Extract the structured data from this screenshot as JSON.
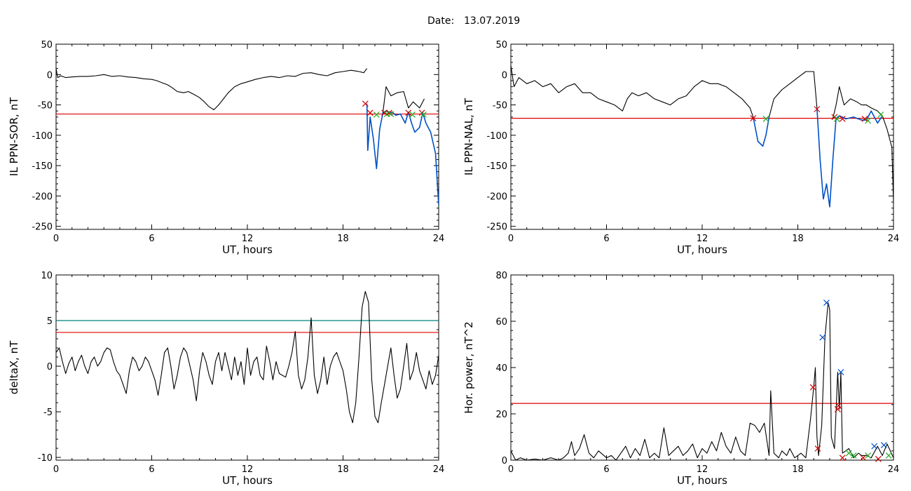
{
  "header": {
    "date_label": "Date:",
    "date_value": "13.07.2019"
  },
  "colors": {
    "signal": "#000000",
    "threshold": "#e00000",
    "threshold2": "#008080",
    "segment": "#0050c8",
    "marker_start": "#d00000",
    "marker_mid": "#22b022",
    "marker_peak": "#0050c8"
  },
  "chart_data": [
    {
      "id": "il-sor",
      "type": "line",
      "xlabel": "UT, hours",
      "ylabel": "IL PPN-SOR, nT",
      "xlim": [
        0,
        24
      ],
      "ylim": [
        -255,
        50
      ],
      "xticks": [
        0,
        6,
        12,
        18,
        24
      ],
      "yticks": [
        50,
        0,
        -50,
        -100,
        -150,
        -200,
        -250
      ],
      "series": [
        {
          "color": "black",
          "x": [
            0,
            0.1,
            0.3,
            0.6,
            1,
            1.5,
            2,
            2.5,
            3,
            3.5,
            4,
            4.5,
            5,
            5.5,
            6,
            6.3,
            6.6,
            7,
            7.3,
            7.6,
            8,
            8.3,
            8.6,
            9,
            9.3,
            9.6,
            9.9,
            10.2,
            10.5,
            10.8,
            11.2,
            11.6,
            12,
            12.5,
            13,
            13.5,
            14,
            14.5,
            15,
            15.5,
            16,
            16.5,
            17,
            17.5,
            18,
            18.5,
            19,
            19.3,
            19.5
          ],
          "y": [
            10,
            -5,
            -2,
            -5,
            -4,
            -3,
            -3,
            -2,
            0,
            -3,
            -2,
            -4,
            -5,
            -7,
            -8,
            -10,
            -13,
            -17,
            -22,
            -28,
            -30,
            -28,
            -32,
            -38,
            -45,
            -53,
            -58,
            -50,
            -40,
            -30,
            -20,
            -15,
            -12,
            -8,
            -5,
            -3,
            -5,
            -2,
            -3,
            2,
            3,
            0,
            -2,
            3,
            5,
            7,
            5,
            3,
            10
          ]
        },
        {
          "color": "blue",
          "x": [
            19.5,
            19.55,
            19.7,
            19.9,
            20.1,
            20.3,
            20.5,
            20.7,
            20.9,
            21.1,
            21.3,
            21.6,
            21.9,
            22.1,
            22.3,
            22.5,
            22.8,
            23.0,
            23.2,
            23.5,
            23.8,
            24
          ],
          "y": [
            -48,
            -125,
            -70,
            -105,
            -155,
            -90,
            -63,
            -60,
            -63,
            -62,
            -67,
            -65,
            -80,
            -62,
            -80,
            -95,
            -87,
            -63,
            -80,
            -95,
            -130,
            -215
          ]
        },
        {
          "color": "black",
          "x": [
            20.5,
            20.7,
            21.0,
            21.4,
            21.8,
            22.1,
            22.4,
            22.8,
            23.1
          ],
          "y": [
            -63,
            -20,
            -35,
            -30,
            -28,
            -55,
            -45,
            -55,
            -40
          ]
        }
      ],
      "thresholds": [
        {
          "y": -65,
          "color": "red"
        }
      ],
      "markers": [
        {
          "x": 19.4,
          "y": -48,
          "color": "red"
        },
        {
          "x": 19.7,
          "y": -63,
          "color": "red"
        },
        {
          "x": 20.1,
          "y": -66,
          "color": "green"
        },
        {
          "x": 20.6,
          "y": -63,
          "color": "red"
        },
        {
          "x": 20.75,
          "y": -65,
          "color": "green"
        },
        {
          "x": 20.9,
          "y": -63,
          "color": "red"
        },
        {
          "x": 21.0,
          "y": -65,
          "color": "green"
        },
        {
          "x": 22.1,
          "y": -63,
          "color": "red"
        },
        {
          "x": 22.35,
          "y": -66,
          "color": "green"
        },
        {
          "x": 22.95,
          "y": -63,
          "color": "red"
        },
        {
          "x": 23.05,
          "y": -66,
          "color": "green"
        }
      ]
    },
    {
      "id": "il-nal",
      "type": "line",
      "xlabel": "UT, hours",
      "ylabel": "IL PPN-NAL, nT",
      "xlim": [
        0,
        24
      ],
      "ylim": [
        -255,
        50
      ],
      "xticks": [
        0,
        6,
        12,
        18,
        24
      ],
      "yticks": [
        50,
        0,
        -50,
        -100,
        -150,
        -200,
        -250
      ],
      "series": [
        {
          "color": "black",
          "x": [
            0,
            0.2,
            0.5,
            1,
            1.5,
            2,
            2.5,
            3,
            3.5,
            4,
            4.5,
            5,
            5.5,
            6,
            6.5,
            7,
            7.3,
            7.6,
            8,
            8.5,
            9,
            9.5,
            10,
            10.5,
            11,
            11.5,
            12,
            12.5,
            13,
            13.5,
            14,
            14.5,
            15,
            15.2
          ],
          "y": [
            15,
            -20,
            -5,
            -15,
            -10,
            -20,
            -15,
            -30,
            -20,
            -15,
            -30,
            -30,
            -40,
            -45,
            -50,
            -60,
            -40,
            -30,
            -35,
            -30,
            -40,
            -45,
            -50,
            -40,
            -35,
            -20,
            -10,
            -15,
            -15,
            -20,
            -30,
            -40,
            -55,
            -70
          ]
        },
        {
          "color": "blue",
          "x": [
            15.2,
            15.5,
            15.8,
            16.0,
            16.2
          ],
          "y": [
            -70,
            -110,
            -118,
            -100,
            -70
          ]
        },
        {
          "color": "black",
          "x": [
            16.2,
            16.5,
            17,
            17.5,
            18,
            18.5,
            19,
            19.2
          ],
          "y": [
            -70,
            -40,
            -25,
            -15,
            -5,
            5,
            5,
            -55
          ]
        },
        {
          "color": "blue",
          "x": [
            19.2,
            19.4,
            19.6,
            19.8,
            20.0,
            20.2,
            20.4,
            20.6,
            20.8,
            21.0,
            21.5,
            22.0,
            22.3,
            22.6,
            23.0,
            23.3
          ],
          "y": [
            -55,
            -140,
            -205,
            -180,
            -218,
            -140,
            -72,
            -68,
            -70,
            -73,
            -70,
            -75,
            -75,
            -60,
            -80,
            -68
          ]
        },
        {
          "color": "black",
          "x": [
            20.2,
            20.4,
            20.6,
            20.9,
            21.3,
            21.7,
            22.0,
            22.3,
            22.6,
            23.0,
            23.3,
            23.6,
            23.9,
            24
          ],
          "y": [
            -72,
            -50,
            -20,
            -50,
            -40,
            -45,
            -50,
            -50,
            -55,
            -60,
            -68,
            -90,
            -120,
            -210
          ]
        }
      ],
      "thresholds": [
        {
          "y": -72,
          "color": "red"
        }
      ],
      "markers": [
        {
          "x": 15.2,
          "y": -72,
          "color": "red"
        },
        {
          "x": 16.0,
          "y": -73,
          "color": "green"
        },
        {
          "x": 19.2,
          "y": -57,
          "color": "red"
        },
        {
          "x": 20.3,
          "y": -70,
          "color": "red"
        },
        {
          "x": 20.45,
          "y": -73,
          "color": "green"
        },
        {
          "x": 20.8,
          "y": -73,
          "color": "red"
        },
        {
          "x": 22.2,
          "y": -73,
          "color": "red"
        },
        {
          "x": 22.4,
          "y": -76,
          "color": "green"
        },
        {
          "x": 23.2,
          "y": -66,
          "color": "green"
        }
      ]
    },
    {
      "id": "deltax",
      "type": "line",
      "xlabel": "UT, hours",
      "ylabel": "deltaX, nT",
      "xlim": [
        0,
        24
      ],
      "ylim": [
        -10.3,
        10
      ],
      "xticks": [
        0,
        6,
        12,
        18,
        24
      ],
      "yticks": [
        10,
        5,
        0,
        -5,
        -10
      ],
      "series": [
        {
          "color": "black",
          "x": [
            0,
            0.2,
            0.4,
            0.6,
            0.8,
            1.0,
            1.2,
            1.4,
            1.6,
            1.8,
            2.0,
            2.2,
            2.4,
            2.6,
            2.8,
            3.0,
            3.2,
            3.4,
            3.6,
            3.8,
            4.0,
            4.2,
            4.4,
            4.6,
            4.8,
            5.0,
            5.2,
            5.4,
            5.6,
            5.8,
            6.0,
            6.2,
            6.4,
            6.6,
            6.8,
            7.0,
            7.2,
            7.4,
            7.6,
            7.8,
            8.0,
            8.2,
            8.4,
            8.6,
            8.8,
            9.0,
            9.2,
            9.4,
            9.6,
            9.8,
            10.0,
            10.2,
            10.4,
            10.6,
            10.8,
            11.0,
            11.2,
            11.4,
            11.6,
            11.8,
            12.0,
            12.2,
            12.4,
            12.6,
            12.8,
            13.0,
            13.2,
            13.4,
            13.6,
            13.8,
            14.0,
            14.2,
            14.4,
            14.6,
            14.8,
            15.0,
            15.2,
            15.4,
            15.6,
            15.8,
            16.0,
            16.2,
            16.4,
            16.6,
            16.8,
            17.0,
            17.2,
            17.4,
            17.6,
            17.8,
            18.0,
            18.2,
            18.4,
            18.6,
            18.8,
            19.0,
            19.2,
            19.4,
            19.6,
            19.8,
            20.0,
            20.2,
            20.4,
            20.6,
            20.8,
            21.0,
            21.2,
            21.4,
            21.6,
            21.8,
            22.0,
            22.2,
            22.4,
            22.6,
            22.8,
            23.0,
            23.2,
            23.4,
            23.6,
            23.8,
            24
          ],
          "y": [
            1.5,
            2.0,
            0.5,
            -0.8,
            0.3,
            1.0,
            -0.5,
            0.5,
            1.2,
            0.0,
            -0.8,
            0.5,
            1.0,
            0.0,
            0.5,
            1.5,
            2.0,
            1.8,
            0.5,
            -0.5,
            -1.0,
            -2.0,
            -3.0,
            -0.5,
            1.0,
            0.5,
            -0.5,
            0.0,
            1.0,
            0.5,
            -0.5,
            -1.5,
            -3.2,
            -1.0,
            1.5,
            2.0,
            0.0,
            -2.5,
            -1.0,
            1.0,
            2.0,
            1.5,
            0.0,
            -1.5,
            -3.8,
            -0.5,
            1.5,
            0.5,
            -1.0,
            -2.0,
            0.5,
            1.5,
            -0.5,
            1.5,
            0.0,
            -1.5,
            1.0,
            -1.0,
            0.5,
            -2.0,
            2.0,
            -1.0,
            0.5,
            1.0,
            -1.0,
            -1.5,
            2.2,
            0.5,
            -1.5,
            0.5,
            -0.8,
            -1.0,
            -1.2,
            0.0,
            1.5,
            3.8,
            -1.0,
            -2.5,
            -1.5,
            1.0,
            5.3,
            -1.0,
            -3.0,
            -1.5,
            1.0,
            -2.0,
            0.0,
            1.0,
            1.5,
            0.5,
            -0.5,
            -2.5,
            -5.0,
            -6.2,
            -4.0,
            1.0,
            6.5,
            8.2,
            7.0,
            -1.5,
            -5.5,
            -6.2,
            -4.0,
            -2.0,
            0.0,
            2.0,
            -1.0,
            -3.5,
            -2.5,
            0.0,
            2.5,
            -1.5,
            -0.5,
            1.5,
            -0.5,
            -1.5,
            -2.5,
            -0.5,
            -2.0,
            -1.0,
            1.2
          ]
        }
      ],
      "thresholds": [
        {
          "y": 5.0,
          "color": "teal"
        },
        {
          "y": 3.7,
          "color": "red"
        }
      ],
      "markers": []
    },
    {
      "id": "hor-power",
      "type": "line",
      "xlabel": "UT, hours",
      "ylabel": "Hor. power, nT^2",
      "xlim": [
        0,
        24
      ],
      "ylim": [
        0,
        80
      ],
      "xticks": [
        0,
        6,
        12,
        18,
        24
      ],
      "yticks": [
        80,
        60,
        40,
        20,
        0
      ],
      "series": [
        {
          "color": "black",
          "x": [
            0,
            0.3,
            0.6,
            1,
            1.5,
            2,
            2.5,
            3,
            3.3,
            3.6,
            3.8,
            4,
            4.3,
            4.6,
            4.9,
            5.2,
            5.5,
            6,
            6.3,
            6.6,
            6.9,
            7.2,
            7.5,
            7.8,
            8.1,
            8.4,
            8.7,
            9,
            9.3,
            9.6,
            9.9,
            10.2,
            10.5,
            10.8,
            11.1,
            11.4,
            11.7,
            12,
            12.3,
            12.6,
            12.9,
            13.2,
            13.5,
            13.8,
            14.1,
            14.4,
            14.7,
            15,
            15.3,
            15.6,
            15.9,
            16.2,
            16.3,
            16.5,
            16.8,
            17,
            17.3,
            17.5,
            17.8,
            18,
            18.2,
            18.5,
            18.8,
            19,
            19.1,
            19.2,
            19.3,
            19.5,
            19.7,
            19.9,
            20.0,
            20.1,
            20.3,
            20.5,
            20.6,
            20.7,
            20.8,
            21,
            21.2,
            21.5,
            21.8,
            22,
            22.3,
            22.6,
            23,
            23.3,
            23.6,
            24
          ],
          "y": [
            4,
            0,
            1,
            0,
            0.5,
            0,
            1,
            0,
            1,
            3,
            8,
            2,
            5,
            11,
            3,
            1,
            4,
            1,
            2,
            0,
            3,
            6,
            1,
            5,
            2,
            9,
            1,
            3,
            1,
            14,
            2,
            4,
            6,
            2,
            4,
            7,
            1,
            5,
            3,
            8,
            4,
            12,
            6,
            3,
            10,
            4,
            2,
            16,
            15,
            12,
            16,
            2,
            30,
            3,
            1,
            4,
            2,
            5,
            1,
            2,
            3,
            1,
            18,
            32,
            40,
            10,
            2,
            15,
            53,
            68,
            65,
            10,
            5,
            38,
            22,
            38,
            3,
            4,
            5,
            1,
            3,
            2,
            2,
            1,
            6,
            2,
            7,
            1
          ]
        }
      ],
      "thresholds": [
        {
          "y": 24.5,
          "color": "red"
        }
      ],
      "markers": [
        {
          "x": 18.95,
          "y": 31.5,
          "color": "red"
        },
        {
          "x": 19.25,
          "y": 5,
          "color": "red"
        },
        {
          "x": 19.55,
          "y": 53,
          "color": "blue"
        },
        {
          "x": 19.8,
          "y": 68,
          "color": "blue"
        },
        {
          "x": 20.5,
          "y": 22,
          "color": "red"
        },
        {
          "x": 20.55,
          "y": 23.5,
          "color": "red"
        },
        {
          "x": 20.7,
          "y": 38,
          "color": "blue"
        },
        {
          "x": 20.8,
          "y": 1,
          "color": "red"
        },
        {
          "x": 21.2,
          "y": 3,
          "color": "green"
        },
        {
          "x": 21.5,
          "y": 2,
          "color": "green"
        },
        {
          "x": 22.1,
          "y": 1,
          "color": "red"
        },
        {
          "x": 22.4,
          "y": 2,
          "color": "green"
        },
        {
          "x": 22.8,
          "y": 6,
          "color": "blue"
        },
        {
          "x": 23.05,
          "y": 0.5,
          "color": "red"
        },
        {
          "x": 23.4,
          "y": 6.5,
          "color": "blue"
        },
        {
          "x": 23.7,
          "y": 2,
          "color": "green"
        }
      ]
    }
  ]
}
